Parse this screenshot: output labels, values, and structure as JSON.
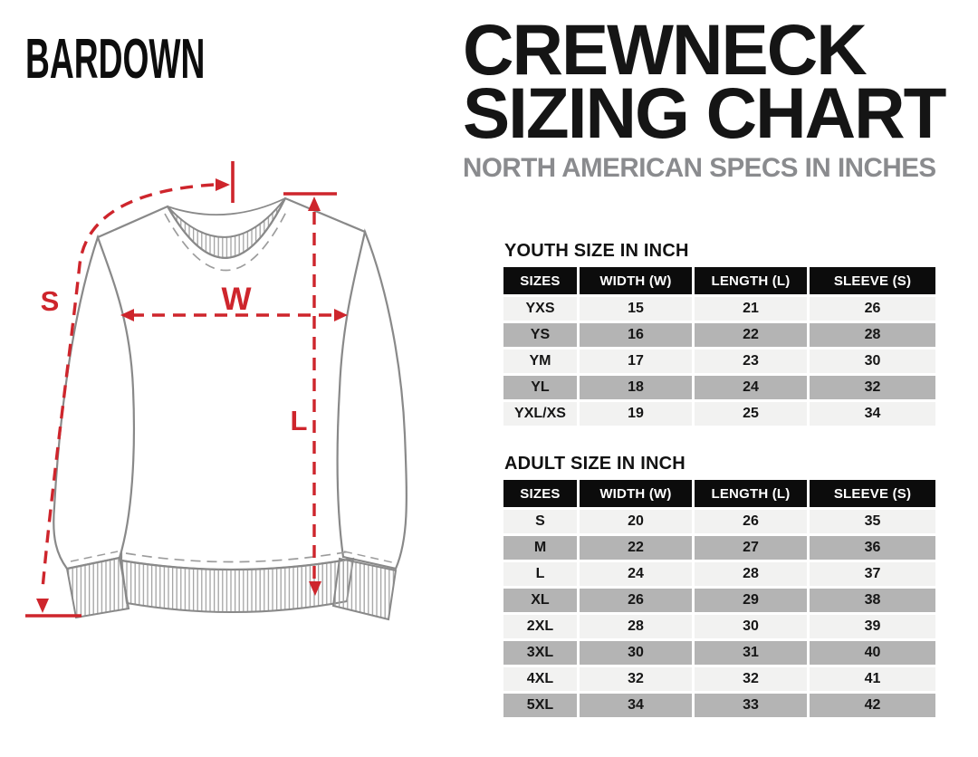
{
  "brand": "BARDOWN",
  "title": {
    "line1": "CREWNECK",
    "line2": "SIZING CHART",
    "subtitle": "NORTH AMERICAN SPECS IN INCHES"
  },
  "diagram": {
    "sleeve_label": "S",
    "width_label": "W",
    "length_label": "L",
    "accent_color": "#ce252c",
    "outline_color": "#898989"
  },
  "tables": [
    {
      "title": "YOUTH SIZE IN INCH",
      "columns": [
        "SIZES",
        "WIDTH (W)",
        "LENGTH (L)",
        "SLEEVE (S)"
      ],
      "rows": [
        [
          "YXS",
          "15",
          "21",
          "26"
        ],
        [
          "YS",
          "16",
          "22",
          "28"
        ],
        [
          "YM",
          "17",
          "23",
          "30"
        ],
        [
          "YL",
          "18",
          "24",
          "32"
        ],
        [
          "YXL/XS",
          "19",
          "25",
          "34"
        ]
      ]
    },
    {
      "title": "ADULT SIZE IN INCH",
      "columns": [
        "SIZES",
        "WIDTH (W)",
        "LENGTH (L)",
        "SLEEVE (S)"
      ],
      "rows": [
        [
          "S",
          "20",
          "26",
          "35"
        ],
        [
          "M",
          "22",
          "27",
          "36"
        ],
        [
          "L",
          "24",
          "28",
          "37"
        ],
        [
          "XL",
          "26",
          "29",
          "38"
        ],
        [
          "2XL",
          "28",
          "30",
          "39"
        ],
        [
          "3XL",
          "30",
          "31",
          "40"
        ],
        [
          "4XL",
          "32",
          "32",
          "41"
        ],
        [
          "5XL",
          "34",
          "33",
          "42"
        ]
      ]
    }
  ]
}
